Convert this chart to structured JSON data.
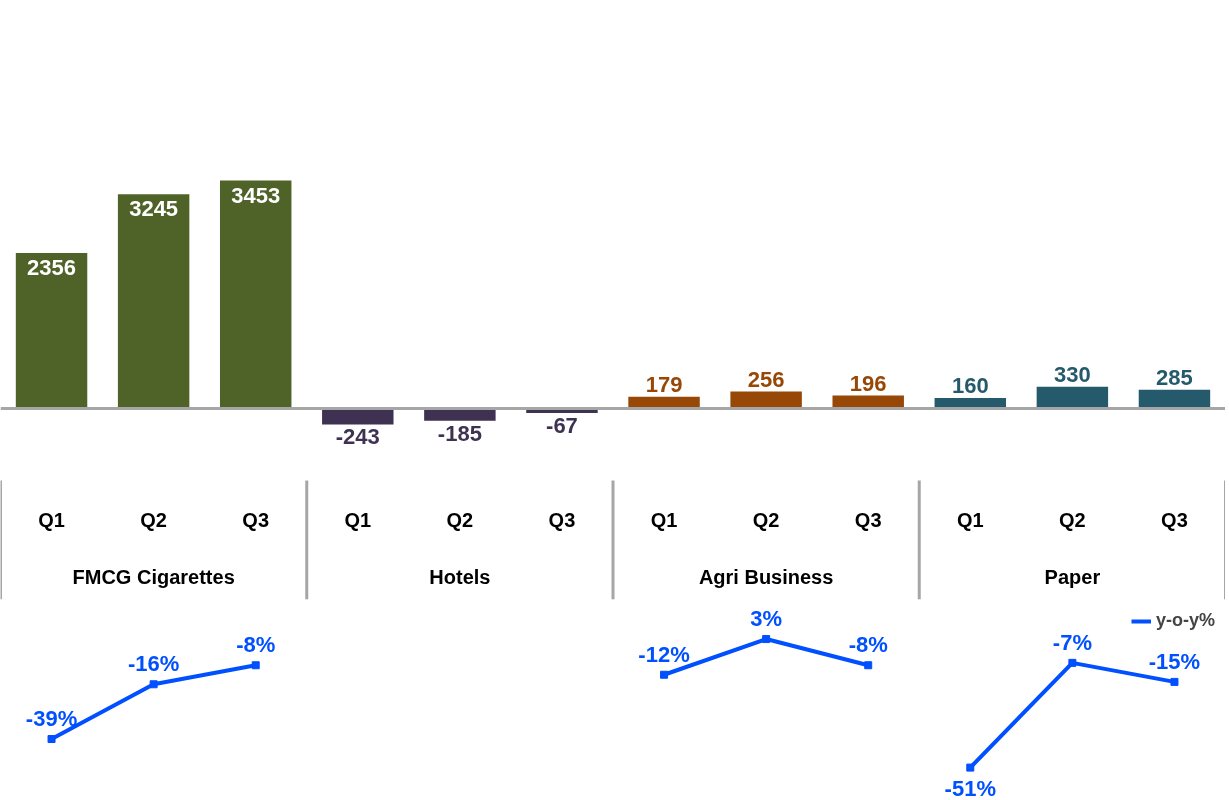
{
  "chart_data": [
    {
      "type": "bar",
      "categories": [
        "Q1",
        "Q2",
        "Q3",
        "Q1",
        "Q2",
        "Q3",
        "Q1",
        "Q2",
        "Q3",
        "Q1",
        "Q2",
        "Q3"
      ],
      "annotations": [
        "FMCG Cigarettes",
        "Hotels",
        "Agri Business",
        "Paper"
      ],
      "colors": [
        "#4f6228",
        "#4f6228",
        "#4f6228",
        "#3f3151",
        "#3f3151",
        "#3f3151",
        "#974806",
        "#974806",
        "#974806",
        "#245a6b",
        "#245a6b",
        "#245a6b"
      ],
      "values": [
        2356,
        3245,
        3453,
        -243,
        -185,
        -67,
        179,
        256,
        196,
        160,
        330,
        285
      ],
      "data_labels": true,
      "grid": false
    },
    {
      "type": "line",
      "categories": [
        null,
        null,
        null,
        null,
        null,
        null,
        null,
        null,
        null,
        null,
        null,
        null
      ],
      "series": [
        {
          "name": "y-o-y%",
          "color": "#0050ff",
          "values": [
            -39,
            -16,
            -8,
            null,
            null,
            null,
            null,
            null,
            null,
            null,
            null,
            null
          ],
          "value_labels": [
            "-39%",
            "-16%",
            "-8%",
            null,
            null,
            null,
            null,
            null,
            null,
            null,
            null,
            null
          ]
        },
        {
          "color": "#0050ff",
          "values": [
            null,
            null,
            null,
            null,
            null,
            null,
            -12,
            3,
            -8,
            null,
            null,
            null
          ],
          "value_labels": [
            null,
            null,
            null,
            null,
            null,
            null,
            "-12%",
            "3%",
            "-8%",
            null,
            null,
            null
          ]
        },
        {
          "color": "#0050ff",
          "values": [
            null,
            null,
            null,
            null,
            null,
            null,
            null,
            null,
            null,
            -51,
            -7,
            -15
          ],
          "value_labels": [
            null,
            null,
            null,
            null,
            null,
            null,
            null,
            null,
            null,
            "-51%",
            "-7%",
            "-15%"
          ]
        }
      ],
      "tick_labels": false,
      "legend": "top right",
      "marker": "square",
      "grid": false
    }
  ]
}
